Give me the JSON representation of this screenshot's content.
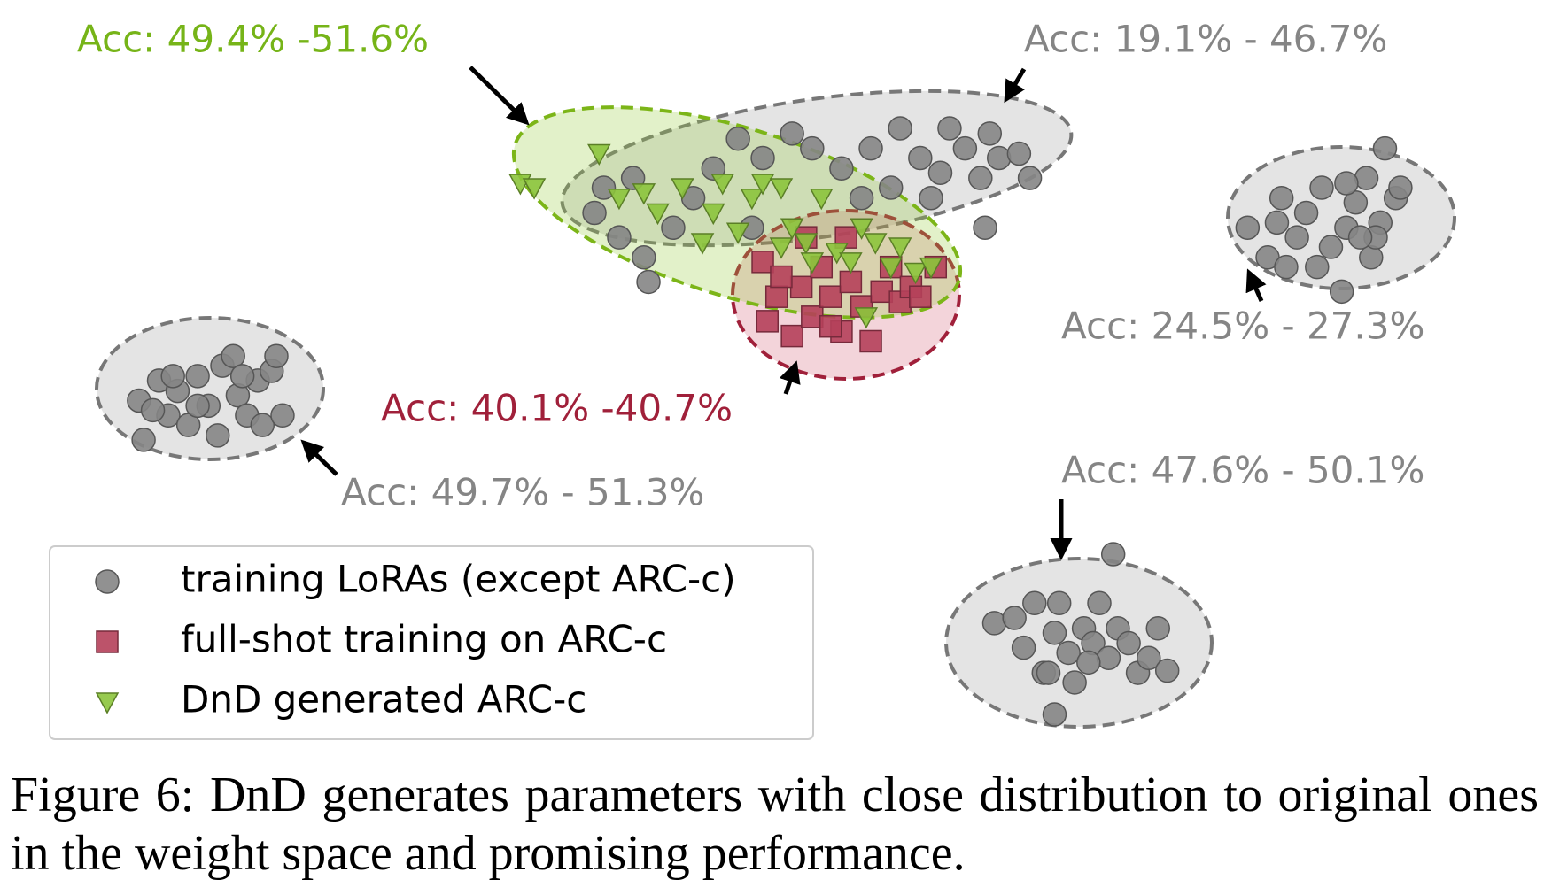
{
  "chart_data": {
    "type": "scatter",
    "xlim": [
      0,
      100
    ],
    "ylim": [
      0,
      100
    ],
    "series": [
      {
        "name": "training LoRAs (except ARC-c)",
        "color": "#858585",
        "marker": "circle",
        "x": [
          38.5,
          40.1,
          41.7,
          43.6,
          44.9,
          46.2,
          47.8,
          49.4,
          51.3,
          52.6,
          54.5,
          56.4,
          57.7,
          58.3,
          59.6,
          60.9,
          61.5,
          62.5,
          63.5,
          64.1,
          64.7,
          66.0,
          66.7,
          63.8,
          42.0,
          41.0,
          39.1,
          48.7,
          55.8,
          60.3,
          80.8,
          82.1,
          83.0,
          84.0,
          84.6,
          85.6,
          86.2,
          86.9,
          87.2,
          87.8,
          88.5,
          88.8,
          89.4,
          89.7,
          90.4,
          90.7,
          85.3,
          83.3,
          89.1,
          87.2,
          88.1,
          82.7,
          9.0,
          9.3,
          10.3,
          10.9,
          11.5,
          12.2,
          12.8,
          13.5,
          14.1,
          14.4,
          15.1,
          15.4,
          16.0,
          16.7,
          17.0,
          17.6,
          17.9,
          18.3,
          12.8,
          11.2,
          9.9,
          15.7,
          64.4,
          65.7,
          66.3,
          67.0,
          67.6,
          68.3,
          68.6,
          69.2,
          69.6,
          70.2,
          70.8,
          71.2,
          71.8,
          72.1,
          72.4,
          73.1,
          73.7,
          74.4,
          75.0,
          75.6,
          68.3,
          67.9,
          70.5
        ],
        "y": [
          71.3,
          68.0,
          65.3,
          69.3,
          73.3,
          77.3,
          81.3,
          78.7,
          82.0,
          80.0,
          77.3,
          80.0,
          74.7,
          82.7,
          78.7,
          76.7,
          82.7,
          80.0,
          76.0,
          82.0,
          78.7,
          79.3,
          76.0,
          69.3,
          62.0,
          76.0,
          74.7,
          69.3,
          73.3,
          73.3,
          69.3,
          65.3,
          73.3,
          68.0,
          71.3,
          74.7,
          66.7,
          60.7,
          69.3,
          72.7,
          76.0,
          65.3,
          70.0,
          80.0,
          73.3,
          74.7,
          64.0,
          64.0,
          68.0,
          75.3,
          68.0,
          70.0,
          46.0,
          40.7,
          48.7,
          44.0,
          47.3,
          42.7,
          49.3,
          45.3,
          41.3,
          50.7,
          52.0,
          46.7,
          44.0,
          48.7,
          42.7,
          50.0,
          52.0,
          44.0,
          45.3,
          49.3,
          44.7,
          49.3,
          16.0,
          16.7,
          12.7,
          18.7,
          9.3,
          14.7,
          18.7,
          12.0,
          8.0,
          15.3,
          13.3,
          18.7,
          11.3,
          25.3,
          15.3,
          13.3,
          9.3,
          11.3,
          15.3,
          9.6,
          3.7,
          9.3,
          10.7
        ]
      },
      {
        "name": "full-shot training on ARC-c",
        "color": "#b5405a",
        "marker": "square",
        "x": [
          49.4,
          49.7,
          50.3,
          51.3,
          51.9,
          52.6,
          53.2,
          53.8,
          54.5,
          55.1,
          55.8,
          56.4,
          57.1,
          57.7,
          58.3,
          59.0,
          59.6,
          52.2,
          54.8,
          50.6,
          53.8,
          60.6
        ],
        "y": [
          64.7,
          56.7,
          60.0,
          54.7,
          61.3,
          57.3,
          64.0,
          60.0,
          55.3,
          62.0,
          58.7,
          54.0,
          60.7,
          64.0,
          59.3,
          61.3,
          60.0,
          68.0,
          68.0,
          62.7,
          56.0,
          64.0
        ]
      },
      {
        "name": "DnD generated ARC-c",
        "color": "#8cc43c",
        "marker": "triangle-down",
        "x": [
          33.7,
          34.6,
          38.8,
          40.1,
          41.7,
          42.6,
          44.2,
          45.5,
          46.2,
          46.8,
          47.8,
          48.7,
          49.4,
          50.6,
          51.3,
          52.2,
          53.2,
          54.2,
          55.1,
          55.8,
          56.7,
          57.7,
          58.3,
          59.3,
          60.3,
          56.1,
          52.6,
          50.6
        ],
        "y": [
          75.3,
          74.7,
          79.3,
          73.3,
          74.0,
          71.3,
          74.7,
          67.3,
          71.3,
          75.3,
          68.7,
          73.3,
          75.3,
          74.7,
          69.3,
          67.3,
          73.3,
          66.0,
          64.7,
          69.3,
          67.3,
          64.0,
          66.7,
          63.3,
          64.0,
          57.3,
          64.7,
          66.7
        ]
      }
    ],
    "annotations": [
      {
        "text": "Acc: 49.4% -51.6%",
        "color": "#76b418"
      },
      {
        "text": "Acc: 19.1% - 46.7%",
        "color": "#858585"
      },
      {
        "text": "Acc: 24.5% - 27.3%",
        "color": "#858585"
      },
      {
        "text": "Acc: 40.1% -40.7%",
        "color": "#a0203a"
      },
      {
        "text": "Acc: 49.7% - 51.3%",
        "color": "#858585"
      },
      {
        "text": "Acc: 47.6% - 50.1%",
        "color": "#858585"
      }
    ],
    "legend": "lower left",
    "caption": "Figure 6: DnD generates parameters with close distribution to original ones in the weight space and promising performance."
  }
}
